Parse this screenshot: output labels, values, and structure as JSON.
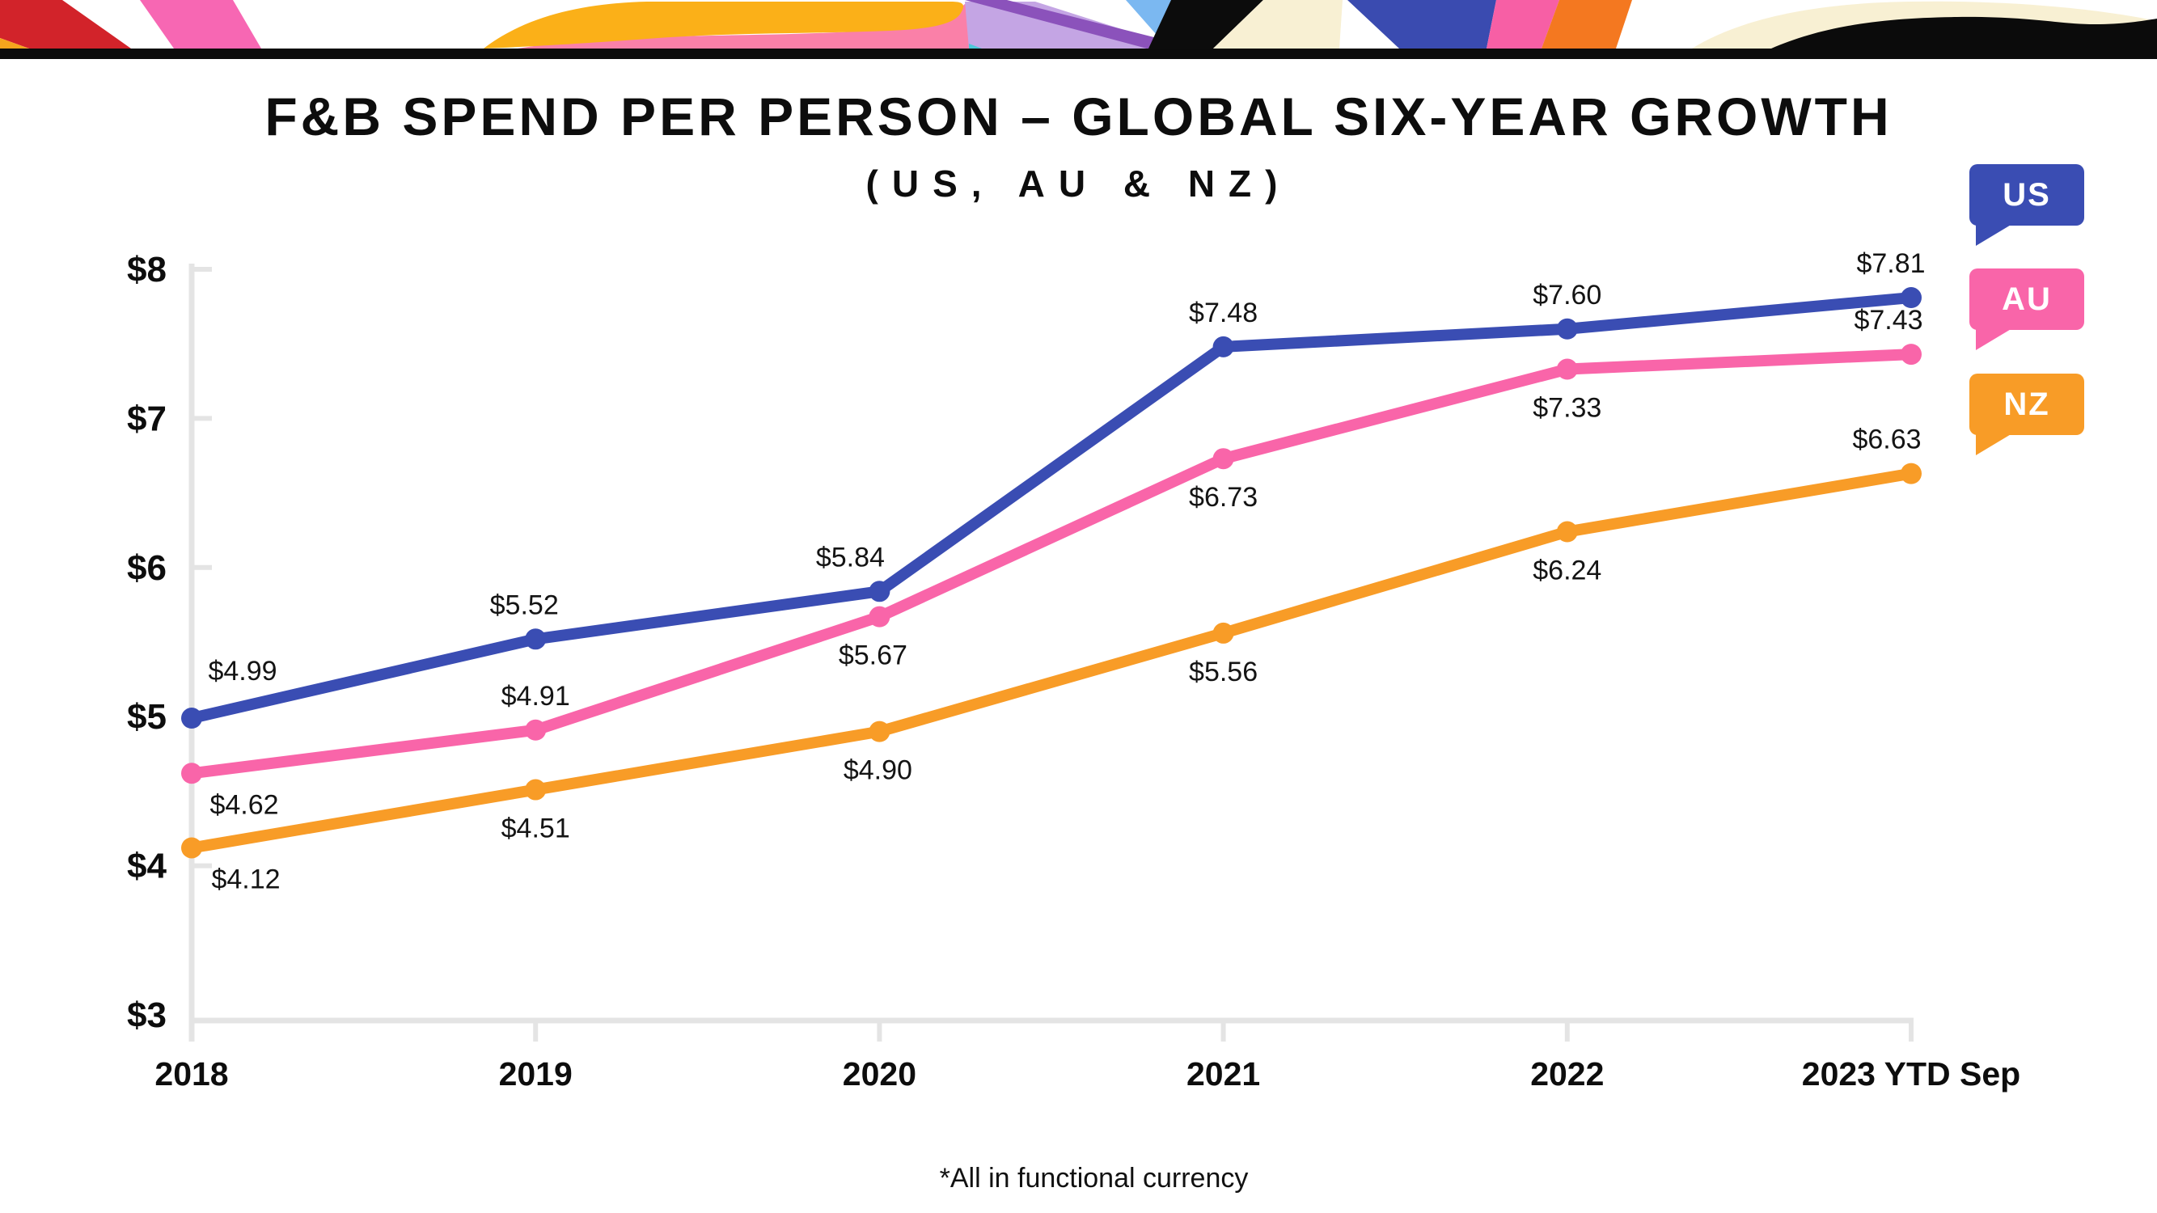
{
  "header": {
    "title": "F&B SPEND PER PERSON – GLOBAL SIX-YEAR GROWTH",
    "subtitle": "(US,  AU  &  NZ)"
  },
  "footnote": "*All in functional currency",
  "legend": [
    {
      "label": "US",
      "color": "#3A4DB3"
    },
    {
      "label": "AU",
      "color": "#F965A9"
    },
    {
      "label": "NZ",
      "color": "#F89C27"
    }
  ],
  "colors": {
    "us": "#3A4DB3",
    "au": "#F965A9",
    "nz": "#F89C27",
    "axis": "#E4E4E4",
    "text": "#0d0d0d"
  },
  "chart_data": {
    "type": "line",
    "title": "F&B SPEND PER PERSON – GLOBAL SIX-YEAR GROWTH (US, AU & NZ)",
    "categories": [
      "2018",
      "2019",
      "2020",
      "2021",
      "2022",
      "2023 YTD Sep"
    ],
    "xlabel": "",
    "ylabel": "",
    "y_axis": {
      "min": 3,
      "max": 8,
      "tick_values": [
        8,
        7,
        6,
        5,
        4,
        3
      ],
      "tick_labels": [
        "$8",
        "$7",
        "$6",
        "$5",
        "$4",
        "$3"
      ]
    },
    "grid": false,
    "legend_position": "right",
    "series": [
      {
        "name": "US",
        "color": "#3A4DB3",
        "values": [
          4.99,
          5.52,
          5.84,
          7.48,
          7.6,
          7.81
        ],
        "labels": [
          "$4.99",
          "$5.52",
          "$5.84",
          "$7.48",
          "$7.60",
          "$7.81"
        ],
        "label_side": [
          "above",
          "above",
          "above",
          "above",
          "above",
          "above"
        ]
      },
      {
        "name": "AU",
        "color": "#F965A9",
        "values": [
          4.62,
          4.91,
          5.67,
          6.73,
          7.33,
          7.43
        ],
        "labels": [
          "$4.62",
          "$4.91",
          "$5.67",
          "$6.73",
          "$7.33",
          "$7.43"
        ],
        "label_side": [
          "below",
          "above",
          "below",
          "below",
          "below",
          "above"
        ]
      },
      {
        "name": "NZ",
        "color": "#F89C27",
        "values": [
          4.12,
          4.51,
          4.9,
          5.56,
          6.24,
          6.63
        ],
        "labels": [
          "$4.12",
          "$4.51",
          "$4.90",
          "$5.56",
          "$6.24",
          "$6.63"
        ],
        "label_side": [
          "below",
          "below",
          "below",
          "below",
          "below",
          "above"
        ]
      }
    ]
  }
}
